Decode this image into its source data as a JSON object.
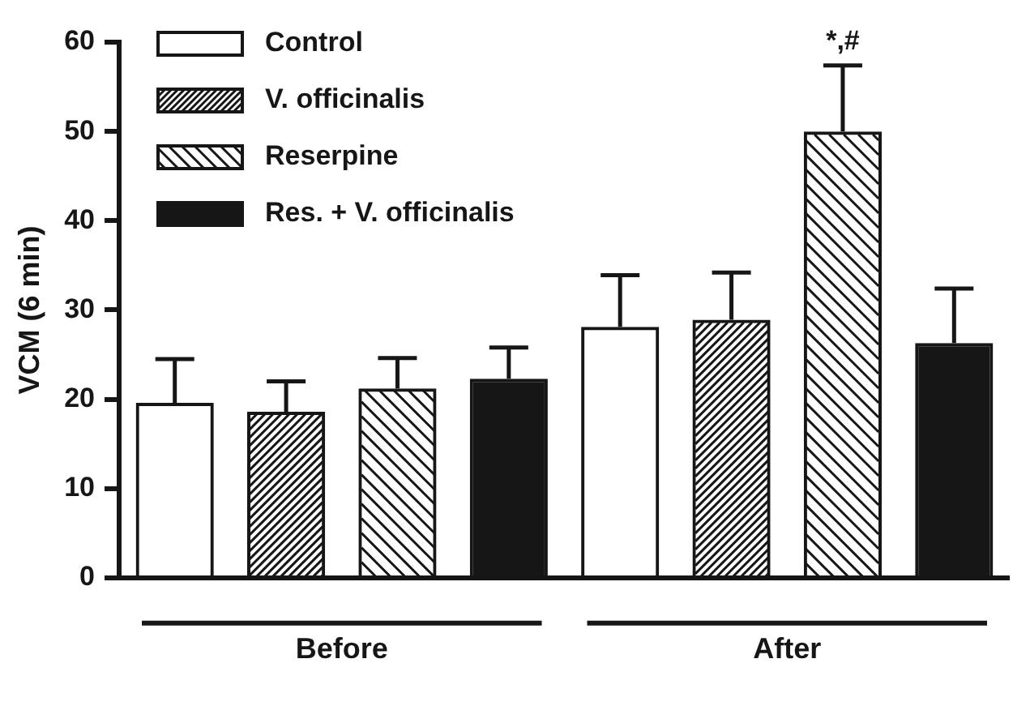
{
  "chart_data": {
    "type": "bar",
    "ylabel": "VCM (6 min)",
    "categories": [
      "Before",
      "After"
    ],
    "series": [
      {
        "name": "Control",
        "color": "#161616",
        "values": [
          19.6,
          28.1
        ],
        "errors": [
          4.9,
          5.8
        ]
      },
      {
        "name": "V. officinalis",
        "color": "#161616",
        "values": [
          18.6,
          28.9
        ],
        "errors": [
          3.4,
          5.3
        ]
      },
      {
        "name": "Reserpine",
        "color": "#161616",
        "values": [
          21.2,
          50.0
        ],
        "errors": [
          3.4,
          7.4
        ]
      },
      {
        "name": "Res. + V. officinalis",
        "color": "#161616",
        "values": [
          22.3,
          26.3
        ],
        "errors": [
          3.5,
          6.1
        ]
      }
    ],
    "ylim": [
      0,
      60
    ],
    "yticks": [
      0,
      10,
      20,
      30,
      40,
      50,
      60
    ],
    "grid": false,
    "legend": "top left",
    "annotations": [
      "*,#"
    ]
  }
}
